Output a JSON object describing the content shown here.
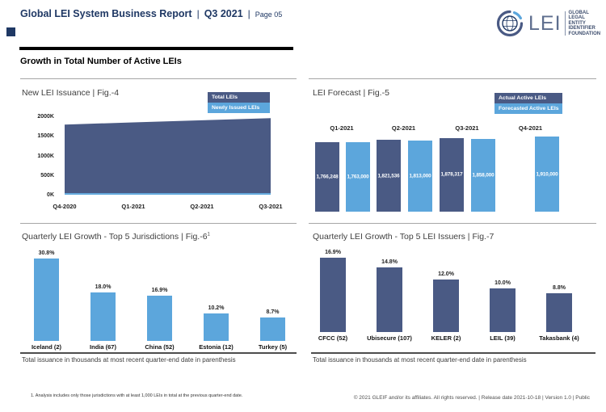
{
  "header": {
    "title": "Global LEI System Business Report",
    "sep": "|",
    "period": "Q3 2021",
    "page": "Page 05",
    "logo": {
      "text": "LEI",
      "tagline": [
        "GLOBAL",
        "LEGAL",
        "ENTITY",
        "IDENTIFIER",
        "FOUNDATION"
      ]
    }
  },
  "section_heading": "Growth in Total Number of Active LEIs",
  "colors": {
    "navy": "#1F3864",
    "bar_dark": "#4A5A84",
    "bar_light": "#5CA6DC",
    "logo_gray_blue": "#5E6E8E",
    "divider_light": "#A6A6A6",
    "divider_dark": "#4D4D4D"
  },
  "chart_data": [
    {
      "id": "fig4",
      "type": "area",
      "title": "New LEI Issuance | Fig.-4",
      "legend": [
        "Total LEIs",
        "Newly Issued LEIs"
      ],
      "legend_position": "top-right",
      "x": [
        "Q4-2020",
        "Q1-2021",
        "Q2-2021",
        "Q3-2021"
      ],
      "series": [
        {
          "name": "Total LEIs",
          "values_thousands": [
            1790,
            1845,
            1900,
            1955
          ]
        },
        {
          "name": "Newly Issued LEIs",
          "values_thousands": [
            40,
            40,
            40,
            40
          ]
        }
      ],
      "ylabel_ticks": [
        "2000K",
        "1500K",
        "1000K",
        "500K",
        "0K"
      ],
      "ylim_thousands": [
        0,
        2000
      ],
      "grid": false
    },
    {
      "id": "fig5",
      "type": "bar",
      "title": "LEI Forecast | Fig.-5",
      "legend": [
        "Actual Active LEIs",
        "Forecasted Active LEIs"
      ],
      "legend_position": "top-right",
      "categories": [
        "Q1-2021",
        "Q2-2021",
        "Q3-2021",
        "Q4-2021"
      ],
      "series": [
        {
          "name": "Actual Active LEIs",
          "values": [
            1766248,
            1821536,
            1878317,
            null
          ],
          "labels": [
            "1,766,248",
            "1,821,536",
            "1,878,317",
            null
          ]
        },
        {
          "name": "Forecasted Active LEIs",
          "values": [
            1763000,
            1813000,
            1858000,
            1910000
          ],
          "labels": [
            "1,763,000",
            "1,813,000",
            "1,858,000",
            "1,910,000"
          ]
        }
      ]
    },
    {
      "id": "fig6",
      "type": "bar",
      "title": "Quarterly LEI Growth - Top 5 Jurisdictions | Fig.-6",
      "title_sup": "1",
      "categories": [
        "Iceland (2)",
        "India (67)",
        "China (52)",
        "Estonia (12)",
        "Turkey (5)"
      ],
      "values_percent": [
        30.8,
        18.0,
        16.9,
        10.2,
        8.7
      ],
      "value_labels": [
        "30.8%",
        "18.0%",
        "16.9%",
        "10.2%",
        "8.7%"
      ],
      "footnote": "Total issuance in thousands at most recent quarter-end date in parenthesis"
    },
    {
      "id": "fig7",
      "type": "bar",
      "title": "Quarterly LEI Growth - Top 5 LEI Issuers | Fig.-7",
      "categories": [
        "CFCC (52)",
        "Ubisecure (107)",
        "KELER (2)",
        "LEIL (39)",
        "Takasbank (4)"
      ],
      "values_percent": [
        16.9,
        14.8,
        12.0,
        10.0,
        8.8
      ],
      "value_labels": [
        "16.9%",
        "14.8%",
        "12.0%",
        "10.0%",
        "8.8%"
      ],
      "footnote": "Total issuance in thousands at most recent quarter-end date in parenthesis"
    }
  ],
  "footer": {
    "footnote": "1. Analysis includes only those jurisdictions with at least 1,000 LEIs in total at the previous quarter-end date.",
    "copyright": "© 2021 GLEIF and/or its affiliates. All rights reserved. | Release date 2021-10-18 | Version 1.0 | Public"
  }
}
